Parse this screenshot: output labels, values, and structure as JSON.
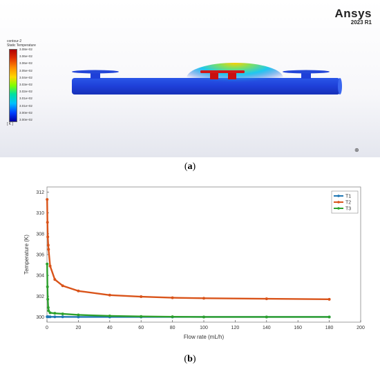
{
  "panel_a": {
    "brand_name": "Ansys",
    "brand_version": "2023 R1",
    "legend_line1": "contour-2",
    "legend_line2": "Static Temperature",
    "colorbar_ticks": [
      "3.08e+02",
      "3.06e+02",
      "3.06e+02",
      "3.05e+02",
      "3.04e+02",
      "3.03e+02",
      "3.02e+02",
      "3.01e+02",
      "3.01e+02",
      "3.00e+02",
      "3.00e+02"
    ],
    "unit": "[ K ]",
    "caption_open": "(",
    "caption_letter": "a",
    "caption_close": ")"
  },
  "panel_b": {
    "caption_open": "(",
    "caption_letter": "b",
    "caption_close": ")"
  },
  "chart_data": {
    "type": "line",
    "xlabel": "Flow rate (mL/h)",
    "ylabel": "Temperature (K)",
    "xlim": [
      0,
      200
    ],
    "ylim": [
      299.5,
      312.5
    ],
    "xticks": [
      0,
      20,
      40,
      60,
      80,
      100,
      120,
      140,
      160,
      180,
      200
    ],
    "yticks": [
      300,
      302,
      304,
      306,
      308,
      310,
      312
    ],
    "grid": false,
    "legend_position": "top-right",
    "series": [
      {
        "name": "T1",
        "color": "#1f77b4",
        "x": [
          0.1,
          0.5,
          1,
          2,
          5,
          10,
          20,
          40,
          60,
          80,
          100,
          140,
          180
        ],
        "y": [
          300.02,
          300.02,
          300.01,
          300.01,
          300.01,
          300.01,
          300.0,
          300.0,
          300.0,
          300.0,
          300.0,
          300.0,
          300.0
        ]
      },
      {
        "name": "T2",
        "color": "#d95319",
        "x": [
          0.1,
          0.3,
          0.5,
          0.8,
          1,
          2,
          5,
          10,
          20,
          40,
          60,
          80,
          100,
          140,
          180
        ],
        "y": [
          311.3,
          309.1,
          307.7,
          306.9,
          306.5,
          304.9,
          303.6,
          303.0,
          302.5,
          302.1,
          301.95,
          301.85,
          301.8,
          301.75,
          301.7
        ]
      },
      {
        "name": "T3",
        "color": "#2ca02c",
        "x": [
          0.1,
          0.3,
          0.5,
          0.8,
          1,
          2,
          5,
          10,
          20,
          40,
          60,
          80,
          100,
          140,
          180
        ],
        "y": [
          305.1,
          302.9,
          301.7,
          300.9,
          300.6,
          300.4,
          300.35,
          300.3,
          300.2,
          300.1,
          300.05,
          300.02,
          300.0,
          300.0,
          300.0
        ]
      }
    ]
  }
}
